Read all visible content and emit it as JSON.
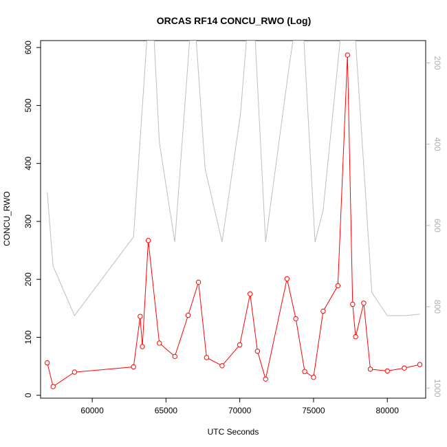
{
  "chart_data": {
    "type": "line",
    "title": "ORCAS RF14 CONCU_RWO (Log)",
    "xlabel": "UTC Seconds",
    "ylabel": "CONCU_RWO",
    "xlim": [
      56500,
      82600
    ],
    "ylim": [
      -5,
      612
    ],
    "y2lim": [
      1025,
      145
    ],
    "x_ticks": [
      60000,
      65000,
      70000,
      75000,
      80000
    ],
    "y_ticks": [
      0,
      100,
      200,
      300,
      400,
      500,
      600
    ],
    "y2_ticks": [
      200,
      400,
      600,
      800,
      1000
    ],
    "grid": false,
    "legend": "none",
    "colors": {
      "primary": "#ff0000",
      "secondary": "#bebebe"
    },
    "series": [
      {
        "axis": "left",
        "marker": "open-circle",
        "x": [
          56950,
          57350,
          58800,
          62800,
          63250,
          63400,
          63800,
          64550,
          65600,
          66500,
          67200,
          67750,
          68800,
          70000,
          70700,
          71200,
          71750,
          73200,
          73800,
          74400,
          75000,
          75650,
          76650,
          77300,
          77650,
          77850,
          78400,
          78850,
          80000,
          81150,
          82200
        ],
        "y": [
          56,
          15,
          40,
          49,
          136,
          84,
          267,
          90,
          67,
          138,
          195,
          65,
          51,
          87,
          175,
          76,
          28,
          201,
          132,
          41,
          31,
          145,
          189,
          587,
          157,
          101,
          159,
          45,
          42,
          47,
          53
        ]
      },
      {
        "axis": "right",
        "marker": "none",
        "x": [
          56950,
          57350,
          58800,
          62800,
          63700,
          64200,
          64550,
          65600,
          66600,
          67050,
          67650,
          68800,
          70050,
          70450,
          71050,
          71750,
          73300,
          73600,
          74350,
          75100,
          75650,
          76800,
          77300,
          77850,
          78550,
          78950,
          80000,
          81200,
          82200
        ],
        "y": [
          518,
          700,
          822,
          628,
          145,
          145,
          395,
          641,
          145,
          145,
          460,
          641,
          326,
          145,
          145,
          641,
          220,
          145,
          145,
          641,
          562,
          145,
          145,
          145,
          537,
          765,
          822,
          822,
          818
        ]
      }
    ]
  }
}
